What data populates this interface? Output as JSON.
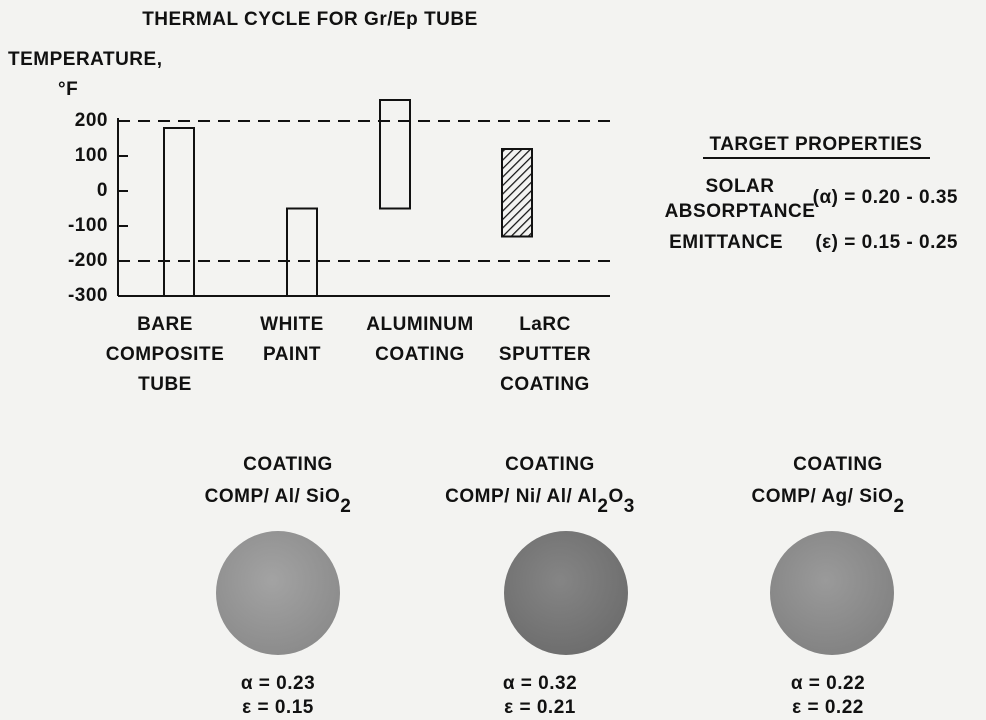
{
  "chart_data": {
    "type": "floating-bar",
    "title": "THERMAL CYCLE FOR Gr/Ep TUBE",
    "y_label": [
      "TEMPERATURE,",
      "°F"
    ],
    "categories": [
      [
        "BARE",
        "COMPOSITE",
        "TUBE"
      ],
      [
        "WHITE",
        "PAINT"
      ],
      [
        "ALUMINUM",
        "COATING"
      ],
      [
        "LaRC",
        "SPUTTER",
        "COATING"
      ]
    ],
    "low": [
      -300,
      -300,
      -50,
      -130
    ],
    "high": [
      180,
      -50,
      260,
      120
    ],
    "fill": [
      "none",
      "none",
      "none",
      "hatch"
    ],
    "color": "#111",
    "ylim": [
      -300,
      260
    ],
    "yticks": [
      200,
      100,
      0,
      -100,
      -200,
      -300
    ],
    "reference_lines": [
      200,
      -200
    ]
  },
  "target_properties": {
    "title": "TARGET PROPERTIES",
    "items": [
      {
        "label": [
          "SOLAR",
          "ABSORPTANCE"
        ],
        "value": "(α) = 0.20 - 0.35"
      },
      {
        "label": [
          "EMITTANCE"
        ],
        "value": "(ε) = 0.15 - 0.25"
      }
    ]
  },
  "samples": [
    {
      "title": "COATING",
      "composition": [
        {
          "text": "COMP/ Al/ SiO"
        },
        {
          "sub": "2"
        }
      ],
      "alpha": "α = 0.23",
      "epsilon": "ε = 0.15"
    },
    {
      "title": "COATING",
      "composition": [
        {
          "text": "COMP/ Ni/ Al/ Al"
        },
        {
          "sub": "2"
        },
        {
          "text": "O"
        },
        {
          "sub": "3"
        }
      ],
      "alpha": "α = 0.32",
      "epsilon": "ε = 0.21"
    },
    {
      "title": "COATING",
      "composition": [
        {
          "text": "COMP/ Ag/ SiO"
        },
        {
          "sub": "2"
        }
      ],
      "alpha": "α = 0.22",
      "epsilon": "ε = 0.22"
    }
  ]
}
